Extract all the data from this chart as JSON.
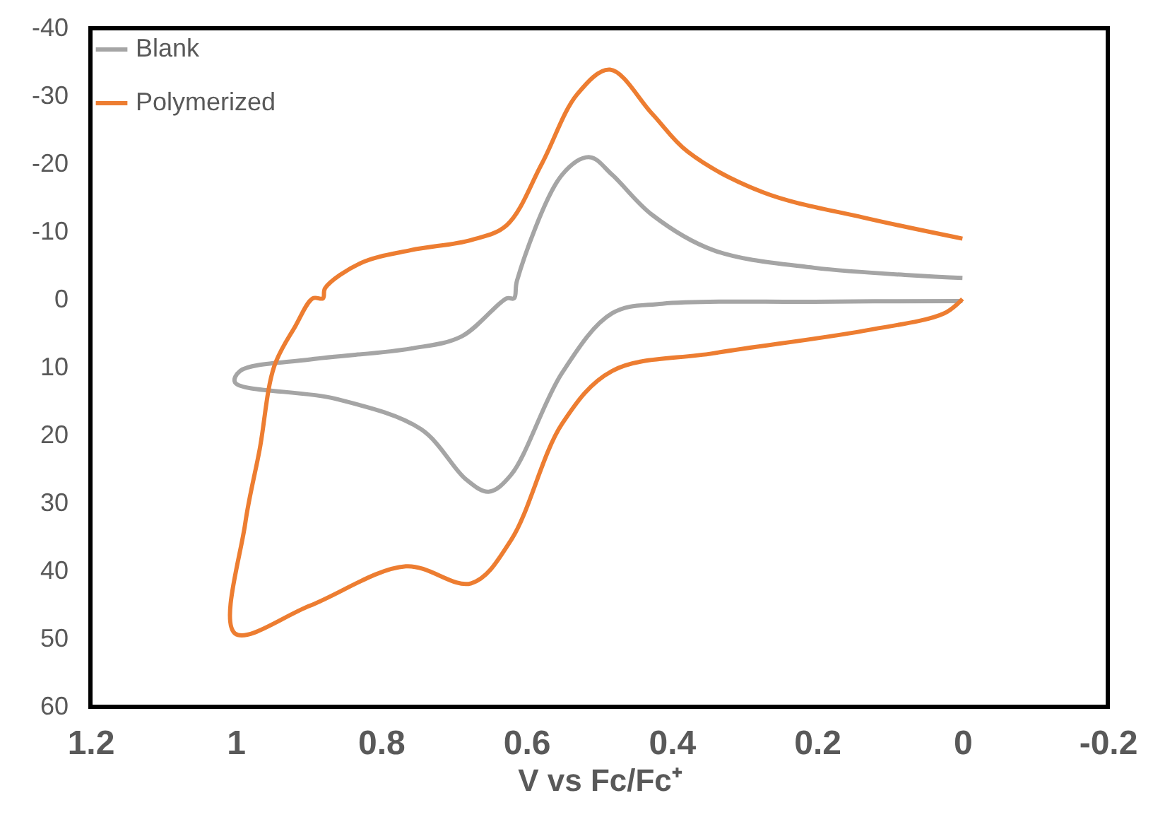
{
  "chart_data": {
    "type": "line",
    "xlabel": "V vs Fc/Fc⁺",
    "xlim": [
      1.2,
      -0.2
    ],
    "xticks": [
      1.2,
      1,
      0.8,
      0.6,
      0.4,
      0.2,
      0,
      -0.2
    ],
    "ylim": [
      60,
      -40
    ],
    "yticks": [
      60,
      50,
      40,
      30,
      20,
      10,
      0,
      -10,
      -20,
      -30,
      -40
    ],
    "grid": false,
    "legend": "top left",
    "marker": "none",
    "line_style": "solid",
    "series": [
      {
        "name": "Blank",
        "color": "#a5a5a5",
        "x": [
          0,
          0.204,
          0.343,
          0.427,
          0.482,
          0.513,
          0.551,
          0.613,
          0.617,
          0.627,
          0.689,
          0.759,
          0.897,
          0.994,
          1.001,
          0.863,
          0.745,
          0.683,
          0.652,
          0.621,
          0.551,
          0.482,
          0.413,
          0.204,
          0
        ],
        "values": [
          -3.2,
          -4.7,
          -7.3,
          -12.5,
          -18.4,
          -21,
          -18.4,
          -2.8,
          -0.2,
          -0.2,
          5.4,
          7.2,
          8.8,
          10.5,
          12.2,
          14.6,
          19.1,
          26.5,
          28.3,
          25.8,
          10.8,
          2,
          0.6,
          0.3,
          0.2
        ]
      },
      {
        "name": "Polymerized",
        "color": "#ed7d31",
        "x": [
          0,
          0.025,
          0.136,
          0.343,
          0.482,
          0.551,
          0.621,
          0.676,
          0.766,
          0.898,
          1.001,
          0.987,
          0.967,
          0.947,
          0.918,
          0.894,
          0.88,
          0.877,
          0.828,
          0.759,
          0.676,
          0.627,
          0.579,
          0.53,
          0.485,
          0.427,
          0.378,
          0.274,
          0.136,
          0
        ],
        "values": [
          -0.1,
          2,
          4.6,
          7.9,
          10.5,
          18.3,
          35.4,
          41.8,
          39.3,
          45.1,
          49.2,
          33,
          22,
          9.8,
          3.9,
          -0.2,
          -0.2,
          -1.7,
          -5.4,
          -7.3,
          -8.8,
          -11,
          -20,
          -30.3,
          -33.9,
          -27.4,
          -21.8,
          -15.8,
          -12.1,
          -9
        ]
      }
    ]
  }
}
